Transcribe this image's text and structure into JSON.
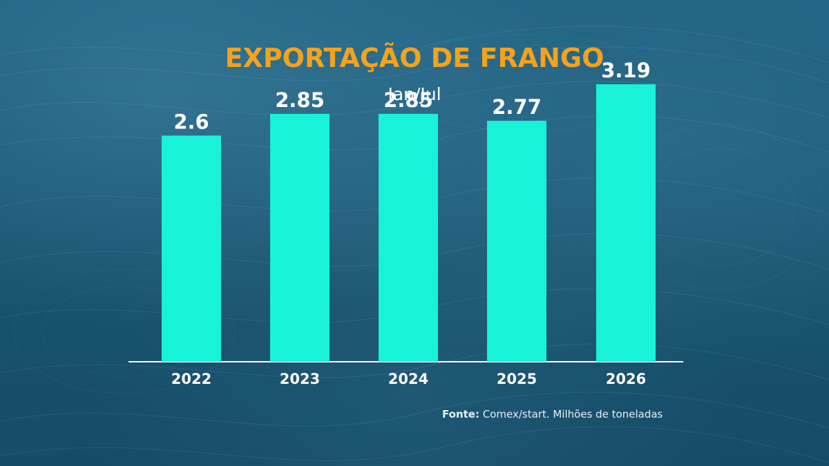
{
  "source": {
    "label": "Fonte:",
    "text": "Comex/start. Milhões de toneladas"
  },
  "colors": {
    "bar": "#18f2d8",
    "title": "#f5a21c",
    "text": "#ffffff",
    "background": "#1a5675"
  },
  "chart_data": {
    "type": "bar",
    "title": "EXPORTAÇÃO DE FRANGO",
    "subtitle": "Jan/Jul",
    "categories": [
      "2022",
      "2023",
      "2024",
      "2025",
      "2026"
    ],
    "values": [
      2.6,
      2.85,
      2.85,
      2.77,
      3.19
    ],
    "value_labels": [
      "2.6",
      "2.85",
      "2.85",
      "2.77",
      "3.19"
    ],
    "ylim": [
      0,
      3.5
    ],
    "grid": false,
    "legend": "none"
  }
}
